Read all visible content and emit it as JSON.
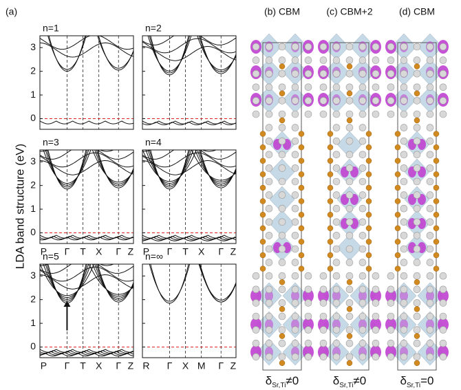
{
  "panel_a": {
    "label": "(a)",
    "y_label": "LDA band structure (eV)",
    "ylim": [
      -0.45,
      3.5
    ],
    "yticks": [
      0,
      1,
      2,
      3
    ],
    "subplots": [
      {
        "title": "n=1"
      },
      {
        "title": "n=2"
      },
      {
        "title": "n=3",
        "xticks": [
          "P",
          "Γ",
          "T",
          "X",
          "Γ",
          "Z"
        ]
      },
      {
        "title": "n=4",
        "xticks": [
          "P",
          "Γ",
          "T",
          "X",
          "Γ",
          "Z"
        ]
      },
      {
        "title": "n=5",
        "xticks": [
          "P",
          "Γ",
          "T",
          "X",
          "Γ",
          "Z"
        ]
      },
      {
        "title": "n=∞",
        "xticks": [
          "R",
          "Γ",
          "X",
          "M",
          "Γ",
          "Z"
        ]
      }
    ]
  },
  "structure_panels": [
    {
      "label": "(b) CBM",
      "caption": {
        "symbol": "δ",
        "subscript": "Sr,Ti",
        "relation": "≠0"
      }
    },
    {
      "label": "(c) CBM+2",
      "caption": {
        "symbol": "δ",
        "subscript": "Sr,Ti",
        "relation": "≠0"
      }
    },
    {
      "label": "(d) CBM",
      "caption": {
        "symbol": "δ",
        "subscript": "Sr,Ti",
        "relation": "=0"
      }
    }
  ]
}
